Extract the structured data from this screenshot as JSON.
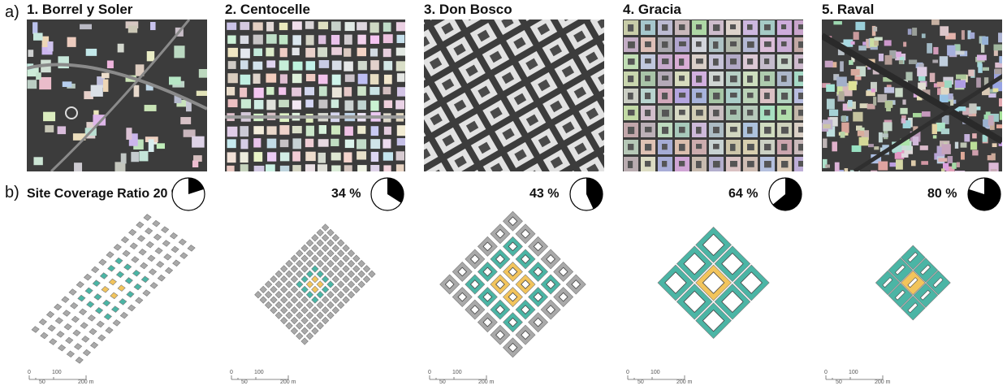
{
  "row_labels": {
    "a": "a)",
    "b": "b)"
  },
  "coverage_prefix": "Site Coverage Ratio",
  "colors": {
    "block_grey": "#a9a9a9",
    "block_teal": "#4bb5a5",
    "block_yellow": "#f2c45c",
    "pie_fill": "#000000"
  },
  "sites": [
    {
      "number": "1.",
      "name": "Borrel y Soler",
      "coverage_text": "20 %",
      "coverage": 0.2,
      "aerial_pattern": "dispersed"
    },
    {
      "number": "2.",
      "name": "Centocelle",
      "coverage_text": "34 %",
      "coverage": 0.34,
      "aerial_pattern": "grid-small"
    },
    {
      "number": "3.",
      "name": "Don Bosco",
      "coverage_text": "43 %",
      "coverage": 0.43,
      "aerial_pattern": "diagonal-courtyards"
    },
    {
      "number": "4.",
      "name": "Gracia",
      "coverage_text": "64 %",
      "coverage": 0.64,
      "aerial_pattern": "dense-grid"
    },
    {
      "number": "5.",
      "name": "Raval",
      "coverage_text": "80 %",
      "coverage": 0.8,
      "aerial_pattern": "very-dense"
    }
  ],
  "scalebar": {
    "labels": [
      "0",
      "50",
      "100",
      "200 m"
    ]
  }
}
